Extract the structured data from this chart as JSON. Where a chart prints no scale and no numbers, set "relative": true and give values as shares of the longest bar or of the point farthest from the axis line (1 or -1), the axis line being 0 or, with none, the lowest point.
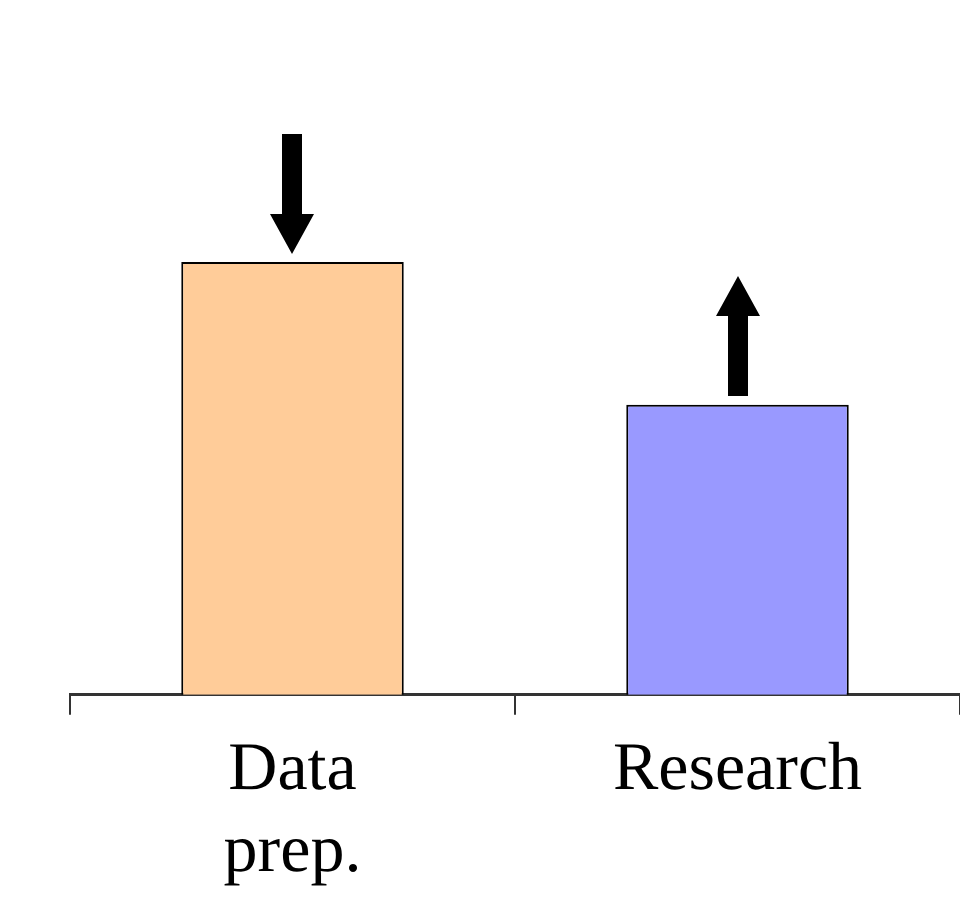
{
  "chart_data": {
    "type": "bar",
    "relative": true,
    "categories": [
      "Data prep.",
      "Research"
    ],
    "values": [
      1,
      0.67
    ],
    "colors": [
      "#ffcc99",
      "#9999ff"
    ],
    "grid": false,
    "legend": false
  }
}
